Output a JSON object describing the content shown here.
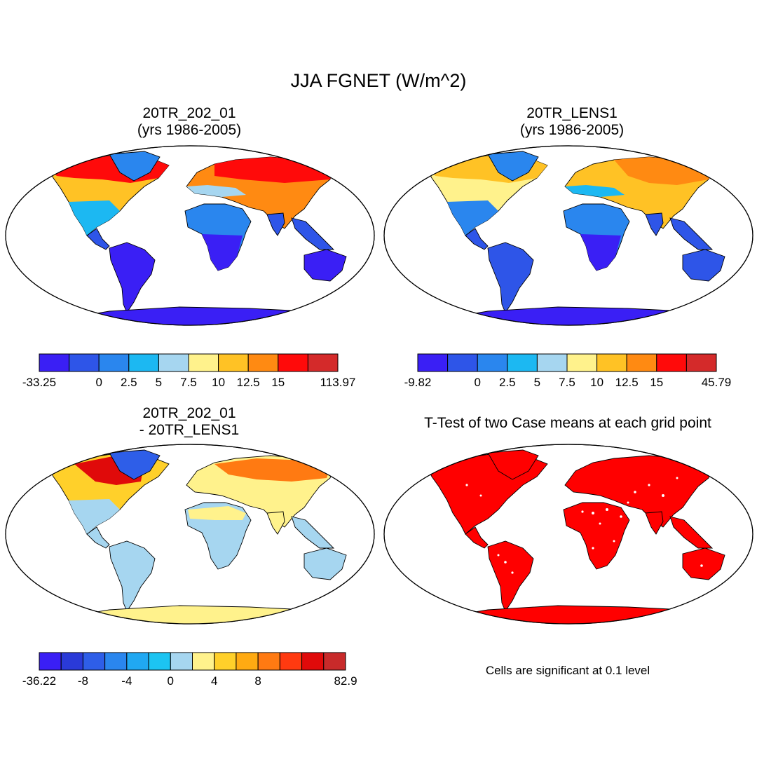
{
  "title": "JJA FGNET (W/m^2)",
  "panels": [
    {
      "title_line1": "20TR_202_01",
      "title_line2": "(yrs 1986-2005)",
      "colorbar_labels": [
        "-33.25",
        "0",
        "2.5",
        "5",
        "7.5",
        "10",
        "12.5",
        "15",
        "113.97"
      ],
      "colorbar_colors": [
        "#3a1ff5",
        "#2e55e8",
        "#2a86ee",
        "#1cb8f2",
        "#a6d6f0",
        "#fff28c",
        "#ffc225",
        "#ff8a12",
        "#ff0a0a",
        "#d42a2a"
      ]
    },
    {
      "title_line1": "20TR_LENS1",
      "title_line2": "(yrs 1986-2005)",
      "colorbar_labels": [
        "-9.82",
        "0",
        "2.5",
        "5",
        "7.5",
        "10",
        "12.5",
        "15",
        "45.79"
      ],
      "colorbar_colors": [
        "#3a1ff5",
        "#2e55e8",
        "#2a86ee",
        "#1cb8f2",
        "#a6d6f0",
        "#fff28c",
        "#ffc225",
        "#ff8a12",
        "#ff0a0a",
        "#d42a2a"
      ]
    },
    {
      "title_line1": "20TR_202_01",
      "title_line2": "- 20TR_LENS1",
      "colorbar_labels": [
        "-36.22",
        "-8",
        "-4",
        "0",
        "4",
        "8",
        "82.9"
      ],
      "colorbar_colors": [
        "#3a1ff5",
        "#2a3ad8",
        "#2e5ee8",
        "#2a86ee",
        "#20a8f2",
        "#1cc4f2",
        "#a6d6f0",
        "#fff28c",
        "#ffd02a",
        "#ffaa12",
        "#ff7a12",
        "#ff3a10",
        "#e00a0a",
        "#c82a2a"
      ]
    },
    {
      "title_line1": "T-Test of two Case means at each grid point",
      "note": "Cells are significant at 0.1 level",
      "sig_color": "#ff0000"
    }
  ]
}
